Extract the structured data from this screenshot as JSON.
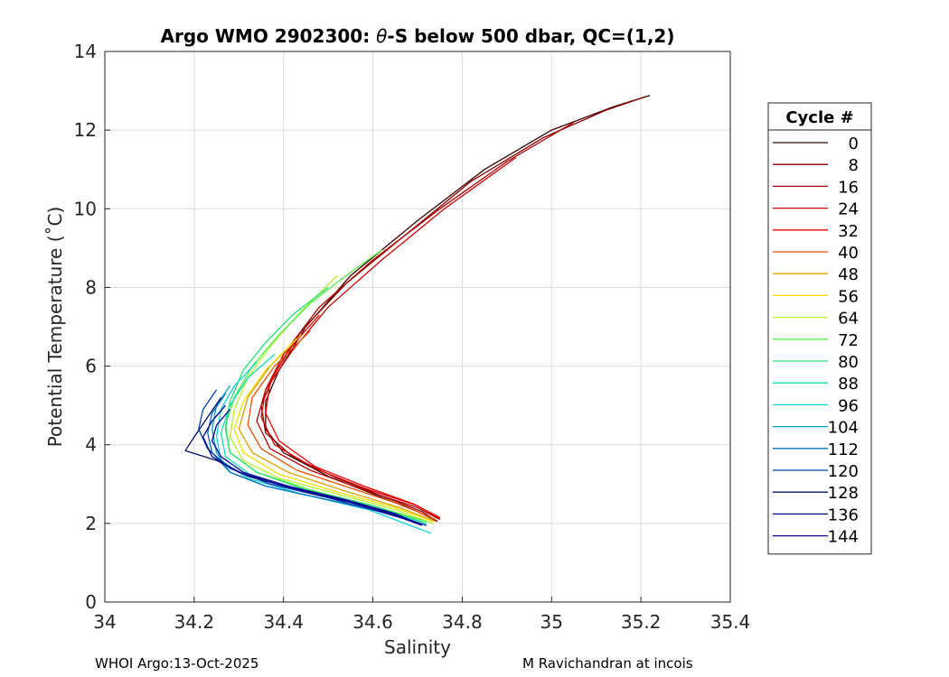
{
  "chart_data": {
    "type": "line",
    "title_prefix": "Argo WMO 2902300: ",
    "title_symbol": "θ",
    "title_suffix": "-S below 500 dbar,  QC=(1,2)",
    "xlabel": "Salinity",
    "ylabel": "Potential Temperature (˚C)",
    "xlim": [
      34,
      35.4
    ],
    "ylim": [
      0,
      14
    ],
    "xticks": [
      "34",
      "34.2",
      "34.4",
      "34.6",
      "34.8",
      "35",
      "35.2",
      "35.4"
    ],
    "xtick_values": [
      34,
      34.2,
      34.4,
      34.6,
      34.8,
      35,
      35.2,
      35.4
    ],
    "yticks": [
      "0",
      "2",
      "4",
      "6",
      "8",
      "10",
      "12",
      "14"
    ],
    "ytick_values": [
      0,
      2,
      4,
      6,
      8,
      10,
      12,
      14
    ],
    "grid": true,
    "legend": {
      "title": "Cycle #",
      "placement": "right",
      "entries": [
        {
          "label": "0",
          "color": "#3a0000"
        },
        {
          "label": "8",
          "color": "#8b0000"
        },
        {
          "label": "16",
          "color": "#b00000"
        },
        {
          "label": "24",
          "color": "#d40000"
        },
        {
          "label": "32",
          "color": "#f40000"
        },
        {
          "label": "40",
          "color": "#f05000"
        },
        {
          "label": "48",
          "color": "#e0a000"
        },
        {
          "label": "56",
          "color": "#f0e000"
        },
        {
          "label": "64",
          "color": "#b8f030"
        },
        {
          "label": "72",
          "color": "#50f040"
        },
        {
          "label": "80",
          "color": "#20e070"
        },
        {
          "label": "88",
          "color": "#10e0b0"
        },
        {
          "label": "96",
          "color": "#10d0e0"
        },
        {
          "label": "104",
          "color": "#00a0d0"
        },
        {
          "label": "112",
          "color": "#0070c0"
        },
        {
          "label": "120",
          "color": "#0040b0"
        },
        {
          "label": "128",
          "color": "#001070"
        },
        {
          "label": "136",
          "color": "#000090"
        },
        {
          "label": "144",
          "color": "#0000a0"
        }
      ]
    },
    "series": [
      {
        "label": "0",
        "points": [
          [
            35.22,
            12.88
          ],
          [
            35.14,
            12.6
          ],
          [
            35.0,
            12.0
          ],
          [
            34.85,
            11.0
          ],
          [
            34.7,
            9.7
          ],
          [
            34.55,
            8.3
          ],
          [
            34.45,
            7.0
          ],
          [
            34.39,
            5.9
          ],
          [
            34.36,
            5.1
          ],
          [
            34.36,
            4.4
          ],
          [
            34.4,
            3.8
          ],
          [
            34.5,
            3.2
          ],
          [
            34.6,
            2.75
          ],
          [
            34.7,
            2.3
          ],
          [
            34.74,
            2.08
          ]
        ]
      },
      {
        "label": "8",
        "points": [
          [
            35.21,
            12.85
          ],
          [
            35.12,
            12.5
          ],
          [
            34.98,
            11.8
          ],
          [
            34.82,
            10.7
          ],
          [
            34.68,
            9.4
          ],
          [
            34.54,
            8.1
          ],
          [
            34.44,
            6.9
          ],
          [
            34.38,
            5.8
          ],
          [
            34.35,
            5.0
          ],
          [
            34.36,
            4.3
          ],
          [
            34.42,
            3.7
          ],
          [
            34.52,
            3.15
          ],
          [
            34.62,
            2.7
          ],
          [
            34.71,
            2.3
          ],
          [
            34.745,
            2.05
          ]
        ]
      },
      {
        "label": "16",
        "points": [
          [
            35.05,
            12.2
          ],
          [
            34.9,
            11.2
          ],
          [
            34.75,
            10.0
          ],
          [
            34.6,
            8.7
          ],
          [
            34.48,
            7.5
          ],
          [
            34.4,
            6.3
          ],
          [
            34.36,
            5.4
          ],
          [
            34.34,
            4.6
          ],
          [
            34.37,
            3.9
          ],
          [
            34.46,
            3.35
          ],
          [
            34.58,
            2.85
          ],
          [
            34.7,
            2.4
          ],
          [
            34.75,
            2.1
          ]
        ]
      },
      {
        "label": "24",
        "points": [
          [
            34.92,
            11.3
          ],
          [
            34.76,
            10.0
          ],
          [
            34.62,
            8.7
          ],
          [
            34.5,
            7.5
          ],
          [
            34.42,
            6.4
          ],
          [
            34.36,
            5.4
          ],
          [
            34.35,
            4.7
          ],
          [
            34.38,
            4.0
          ],
          [
            34.47,
            3.4
          ],
          [
            34.58,
            2.9
          ],
          [
            34.7,
            2.45
          ],
          [
            34.75,
            2.12
          ]
        ]
      },
      {
        "label": "32",
        "points": [
          [
            34.48,
            7.3
          ],
          [
            34.41,
            6.4
          ],
          [
            34.37,
            5.6
          ],
          [
            34.36,
            4.8
          ],
          [
            34.39,
            4.1
          ],
          [
            34.47,
            3.45
          ],
          [
            34.58,
            2.95
          ],
          [
            34.69,
            2.5
          ],
          [
            34.75,
            2.15
          ]
        ]
      },
      {
        "label": "40",
        "points": [
          [
            34.46,
            6.9
          ],
          [
            34.38,
            6.0
          ],
          [
            34.33,
            5.2
          ],
          [
            34.32,
            4.5
          ],
          [
            34.35,
            3.9
          ],
          [
            34.43,
            3.35
          ],
          [
            34.55,
            2.9
          ],
          [
            34.67,
            2.45
          ],
          [
            34.74,
            2.1
          ]
        ]
      },
      {
        "label": "48",
        "points": [
          [
            34.44,
            6.8
          ],
          [
            34.37,
            6.0
          ],
          [
            34.32,
            5.2
          ],
          [
            34.3,
            4.4
          ],
          [
            34.33,
            3.8
          ],
          [
            34.41,
            3.3
          ],
          [
            34.53,
            2.85
          ],
          [
            34.66,
            2.4
          ],
          [
            34.74,
            2.05
          ]
        ]
      },
      {
        "label": "56",
        "points": [
          [
            34.43,
            6.7
          ],
          [
            34.36,
            5.9
          ],
          [
            34.31,
            5.1
          ],
          [
            34.29,
            4.4
          ],
          [
            34.31,
            3.8
          ],
          [
            34.39,
            3.25
          ],
          [
            34.52,
            2.8
          ],
          [
            34.65,
            2.4
          ],
          [
            34.735,
            2.05
          ]
        ]
      },
      {
        "label": "64",
        "points": [
          [
            34.52,
            8.3
          ],
          [
            34.44,
            7.4
          ],
          [
            34.37,
            6.5
          ],
          [
            34.32,
            5.7
          ],
          [
            34.29,
            4.9
          ],
          [
            34.28,
            4.2
          ],
          [
            34.31,
            3.6
          ],
          [
            34.39,
            3.15
          ],
          [
            34.52,
            2.75
          ],
          [
            34.65,
            2.35
          ],
          [
            34.735,
            2.0
          ]
        ]
      },
      {
        "label": "72",
        "points": [
          [
            34.62,
            8.95
          ],
          [
            34.54,
            8.3
          ],
          [
            34.46,
            7.6
          ],
          [
            34.39,
            6.8
          ],
          [
            34.33,
            6.0
          ],
          [
            34.29,
            5.2
          ],
          [
            34.27,
            4.5
          ],
          [
            34.28,
            3.8
          ],
          [
            34.34,
            3.3
          ],
          [
            34.46,
            2.85
          ],
          [
            34.6,
            2.45
          ],
          [
            34.72,
            2.05
          ]
        ]
      },
      {
        "label": "80",
        "points": [
          [
            34.5,
            8.0
          ],
          [
            34.42,
            7.3
          ],
          [
            34.36,
            6.6
          ],
          [
            34.31,
            5.9
          ],
          [
            34.28,
            5.1
          ],
          [
            34.27,
            4.4
          ],
          [
            34.28,
            3.8
          ],
          [
            34.34,
            3.3
          ],
          [
            34.45,
            2.85
          ],
          [
            34.6,
            2.45
          ],
          [
            34.72,
            2.0
          ]
        ]
      },
      {
        "label": "88",
        "points": [
          [
            34.38,
            6.3
          ],
          [
            34.32,
            5.7
          ],
          [
            34.28,
            5.0
          ],
          [
            34.26,
            4.3
          ],
          [
            34.27,
            3.7
          ],
          [
            34.33,
            3.2
          ],
          [
            34.45,
            2.8
          ],
          [
            34.6,
            2.4
          ],
          [
            34.72,
            2.0
          ]
        ]
      },
      {
        "label": "96",
        "points": [
          [
            34.34,
            6.1
          ],
          [
            34.29,
            5.5
          ],
          [
            34.26,
            4.9
          ],
          [
            34.25,
            4.2
          ],
          [
            34.26,
            3.6
          ],
          [
            34.32,
            3.15
          ],
          [
            34.44,
            2.75
          ],
          [
            34.59,
            2.35
          ],
          [
            34.73,
            1.75
          ]
        ]
      },
      {
        "label": "104",
        "points": [
          [
            34.28,
            5.5
          ],
          [
            34.25,
            5.0
          ],
          [
            34.24,
            4.4
          ],
          [
            34.25,
            3.8
          ],
          [
            34.28,
            3.3
          ],
          [
            34.36,
            2.95
          ],
          [
            34.5,
            2.6
          ],
          [
            34.64,
            2.25
          ],
          [
            34.72,
            1.95
          ]
        ]
      },
      {
        "label": "112",
        "points": [
          [
            34.27,
            5.3
          ],
          [
            34.24,
            4.8
          ],
          [
            34.23,
            4.3
          ],
          [
            34.24,
            3.8
          ],
          [
            34.28,
            3.3
          ],
          [
            34.36,
            2.95
          ],
          [
            34.5,
            2.6
          ],
          [
            34.64,
            2.25
          ],
          [
            34.72,
            1.95
          ]
        ]
      },
      {
        "label": "120",
        "points": [
          [
            34.25,
            5.4
          ],
          [
            34.22,
            4.9
          ],
          [
            34.21,
            4.4
          ],
          [
            34.23,
            3.9
          ],
          [
            34.28,
            3.4
          ],
          [
            34.37,
            3.0
          ],
          [
            34.5,
            2.65
          ],
          [
            34.63,
            2.25
          ],
          [
            34.72,
            1.95
          ]
        ]
      },
      {
        "label": "128",
        "points": [
          [
            34.26,
            5.2
          ],
          [
            34.23,
            4.7
          ],
          [
            34.2,
            4.2
          ],
          [
            34.18,
            3.85
          ],
          [
            34.25,
            3.6
          ],
          [
            34.32,
            3.2
          ],
          [
            34.45,
            2.8
          ],
          [
            34.6,
            2.4
          ],
          [
            34.71,
            1.98
          ]
        ]
      },
      {
        "label": "136",
        "points": [
          [
            34.27,
            5.0
          ],
          [
            34.24,
            4.6
          ],
          [
            34.22,
            4.2
          ],
          [
            34.24,
            3.7
          ],
          [
            34.3,
            3.3
          ],
          [
            34.4,
            2.95
          ],
          [
            34.53,
            2.6
          ],
          [
            34.65,
            2.2
          ],
          [
            34.71,
            1.95
          ]
        ]
      },
      {
        "label": "144",
        "points": [
          [
            34.28,
            4.9
          ],
          [
            34.25,
            4.5
          ],
          [
            34.24,
            4.1
          ],
          [
            34.26,
            3.7
          ],
          [
            34.31,
            3.3
          ],
          [
            34.41,
            2.95
          ],
          [
            34.54,
            2.6
          ],
          [
            34.65,
            2.25
          ],
          [
            34.7,
            2.0
          ]
        ]
      }
    ]
  },
  "footer": {
    "left": "WHOI Argo:13-Oct-2025",
    "right": "M Ravichandran at incois"
  }
}
